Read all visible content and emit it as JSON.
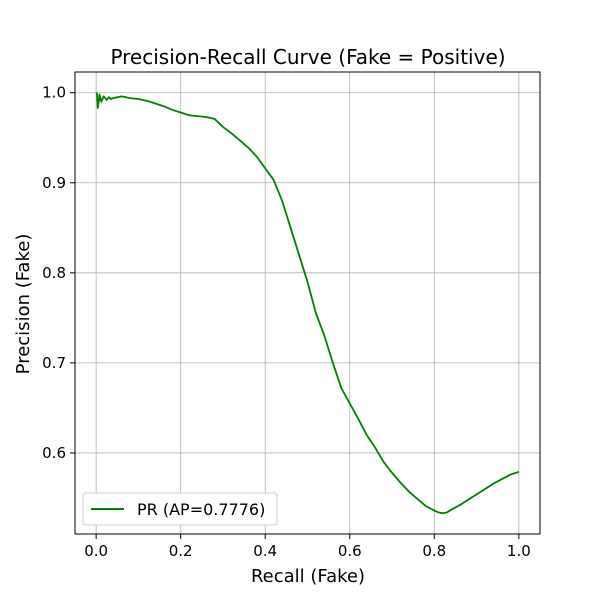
{
  "chart_data": {
    "type": "line",
    "title": "Precision-Recall Curve (Fake = Positive)",
    "xlabel": "Recall (Fake)",
    "ylabel": "Precision (Fake)",
    "xlim": [
      -0.05,
      1.05
    ],
    "ylim": [
      0.51,
      1.023
    ],
    "xticks": [
      0.0,
      0.2,
      0.4,
      0.6,
      0.8,
      1.0
    ],
    "xtick_labels": [
      "0.0",
      "0.2",
      "0.4",
      "0.6",
      "0.8",
      "1.0"
    ],
    "yticks": [
      0.6,
      0.7,
      0.8,
      0.9,
      1.0
    ],
    "ytick_labels": [
      "0.6",
      "0.7",
      "0.8",
      "0.9",
      "1.0"
    ],
    "grid": true,
    "legend_position": "lower-left",
    "series": [
      {
        "name": "PR (AP=0.7776)",
        "color": "#008000",
        "x": [
          0.0,
          0.002,
          0.004,
          0.006,
          0.008,
          0.012,
          0.018,
          0.025,
          0.03,
          0.035,
          0.04,
          0.05,
          0.06,
          0.08,
          0.1,
          0.12,
          0.14,
          0.16,
          0.18,
          0.2,
          0.22,
          0.24,
          0.26,
          0.28,
          0.3,
          0.32,
          0.34,
          0.36,
          0.38,
          0.4,
          0.42,
          0.44,
          0.46,
          0.48,
          0.5,
          0.52,
          0.54,
          0.56,
          0.58,
          0.6,
          0.62,
          0.64,
          0.66,
          0.68,
          0.7,
          0.72,
          0.74,
          0.76,
          0.78,
          0.8,
          0.81,
          0.82,
          0.83,
          0.84,
          0.86,
          0.88,
          0.9,
          0.92,
          0.94,
          0.96,
          0.98,
          1.0
        ],
        "y": [
          1.0,
          0.999,
          0.983,
          0.99,
          0.998,
          0.99,
          0.996,
          0.992,
          0.995,
          0.993,
          0.994,
          0.995,
          0.996,
          0.994,
          0.993,
          0.991,
          0.988,
          0.985,
          0.981,
          0.978,
          0.975,
          0.974,
          0.973,
          0.971,
          0.962,
          0.955,
          0.947,
          0.939,
          0.929,
          0.916,
          0.903,
          0.88,
          0.85,
          0.82,
          0.79,
          0.755,
          0.73,
          0.7,
          0.672,
          0.655,
          0.638,
          0.62,
          0.606,
          0.59,
          0.578,
          0.567,
          0.557,
          0.549,
          0.541,
          0.536,
          0.534,
          0.533,
          0.534,
          0.537,
          0.542,
          0.548,
          0.554,
          0.56,
          0.566,
          0.571,
          0.576,
          0.579
        ]
      }
    ]
  }
}
